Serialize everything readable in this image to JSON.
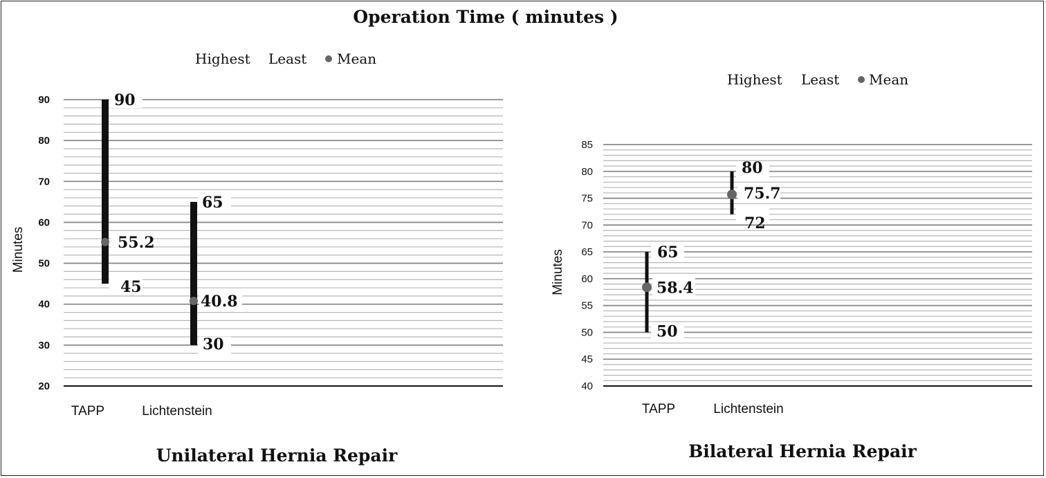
{
  "figure": {
    "title": "Operation Time ( minutes )"
  },
  "legend": {
    "highest": "Highest",
    "least": "Least",
    "mean": "Mean"
  },
  "colors": {
    "bar": "#111111",
    "mean_marker": "#666666",
    "gridline": "#b5b5b5",
    "major_gridline": "#8a8a8a"
  },
  "chart_data": [
    {
      "type": "high-low-mean",
      "subtitle": "Unilateral Hernia Repair",
      "ylabel": "Minutes",
      "ylim": [
        20,
        90
      ],
      "yticks": [
        20,
        30,
        40,
        50,
        60,
        70,
        80,
        90
      ],
      "legend_position": "top",
      "grid": true,
      "categories": [
        "TAPP",
        "Lichtenstein"
      ],
      "series": [
        {
          "name": "Highest",
          "values": [
            90,
            65
          ]
        },
        {
          "name": "Least",
          "values": [
            45,
            30
          ]
        },
        {
          "name": "Mean",
          "values": [
            55.2,
            40.8
          ]
        }
      ]
    },
    {
      "type": "high-low-mean",
      "subtitle": "Bilateral Hernia Repair",
      "ylabel": "Minutes",
      "ylim": [
        40,
        85
      ],
      "yticks": [
        40,
        45,
        50,
        55,
        60,
        65,
        70,
        75,
        80,
        85
      ],
      "legend_position": "top",
      "grid": true,
      "categories": [
        "TAPP",
        "Lichtenstein"
      ],
      "series": [
        {
          "name": "Highest",
          "values": [
            65,
            80
          ]
        },
        {
          "name": "Least",
          "values": [
            50,
            72
          ]
        },
        {
          "name": "Mean",
          "values": [
            58.4,
            75.7
          ]
        }
      ]
    }
  ]
}
